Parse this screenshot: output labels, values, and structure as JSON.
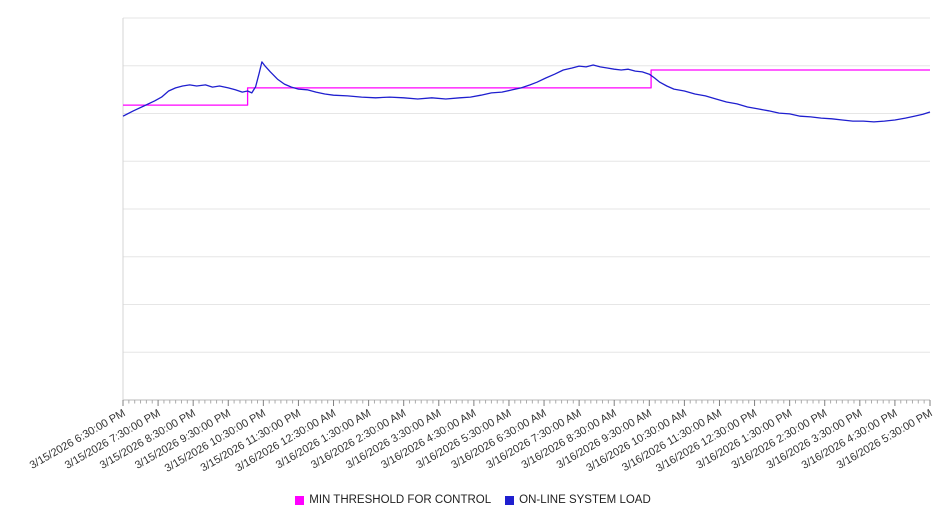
{
  "chart_data": {
    "type": "line",
    "title": "",
    "xlabel": "",
    "ylabel": "",
    "ylim": [
      0,
      100
    ],
    "y_tick_labels": [],
    "grid": "horizontal",
    "legend_position": "bottom-center",
    "x_label_rotation": -30,
    "x_tick_labels": [
      "3/15/2026 6:30:00 PM",
      "3/15/2026 7:30:00 PM",
      "3/15/2026 8:30:00 PM",
      "3/15/2026 9:30:00 PM",
      "3/15/2026 10:30:00 PM",
      "3/15/2026 11:30:00 PM",
      "3/16/2026 12:30:00 AM",
      "3/16/2026 1:30:00 AM",
      "3/16/2026 2:30:00 AM",
      "3/16/2026 3:30:00 AM",
      "3/16/2026 4:30:00 AM",
      "3/16/2026 5:30:00 AM",
      "3/16/2026 6:30:00 AM",
      "3/16/2026 7:30:00 AM",
      "3/16/2026 8:30:00 AM",
      "3/16/2026 9:30:00 AM",
      "3/16/2026 10:30:00 AM",
      "3/16/2026 11:30:00 AM",
      "3/16/2026 12:30:00 PM",
      "3/16/2026 1:30:00 PM",
      "3/16/2026 2:30:00 PM",
      "3/16/2026 3:30:00 PM",
      "3/16/2026 4:30:00 PM",
      "3/16/2026 5:30:00 PM"
    ],
    "series": [
      {
        "name": "MIN THRESHOLD FOR CONTROL",
        "color": "#ff00ff",
        "style": "step",
        "points": [
          [
            0,
            77.2
          ],
          [
            3.55,
            77.2
          ],
          [
            3.55,
            81.7
          ],
          [
            15.05,
            81.7
          ],
          [
            15.05,
            86.4
          ],
          [
            23,
            86.4
          ]
        ]
      },
      {
        "name": "ON-LINE SYSTEM LOAD",
        "color": "#1f1fcf",
        "style": "line",
        "points": [
          [
            0,
            74.3
          ],
          [
            0.3,
            75.7
          ],
          [
            0.6,
            77
          ],
          [
            0.9,
            78.3
          ],
          [
            1.1,
            79.3
          ],
          [
            1.3,
            80.9
          ],
          [
            1.5,
            81.7
          ],
          [
            1.7,
            82.2
          ],
          [
            1.9,
            82.5
          ],
          [
            2.1,
            82.2
          ],
          [
            2.35,
            82.5
          ],
          [
            2.55,
            81.9
          ],
          [
            2.75,
            82.2
          ],
          [
            3,
            81.7
          ],
          [
            3.2,
            81.2
          ],
          [
            3.4,
            80.6
          ],
          [
            3.55,
            80.9
          ],
          [
            3.67,
            80.4
          ],
          [
            3.78,
            82
          ],
          [
            3.88,
            85.5
          ],
          [
            3.96,
            88.5
          ],
          [
            4.05,
            87.4
          ],
          [
            4.2,
            85.9
          ],
          [
            4.4,
            84
          ],
          [
            4.6,
            82.7
          ],
          [
            4.8,
            81.9
          ],
          [
            5,
            81.4
          ],
          [
            5.25,
            81.2
          ],
          [
            5.5,
            80.6
          ],
          [
            5.75,
            80.1
          ],
          [
            6,
            79.8
          ],
          [
            6.4,
            79.6
          ],
          [
            6.8,
            79.3
          ],
          [
            7.2,
            79.1
          ],
          [
            7.6,
            79.3
          ],
          [
            8,
            79.1
          ],
          [
            8.4,
            78.8
          ],
          [
            8.8,
            79.1
          ],
          [
            9.2,
            78.8
          ],
          [
            9.6,
            79.1
          ],
          [
            9.9,
            79.3
          ],
          [
            10.2,
            79.8
          ],
          [
            10.5,
            80.4
          ],
          [
            10.8,
            80.6
          ],
          [
            11.1,
            81.2
          ],
          [
            11.35,
            81.7
          ],
          [
            11.6,
            82.5
          ],
          [
            11.8,
            83.2
          ],
          [
            12.05,
            84.3
          ],
          [
            12.3,
            85.3
          ],
          [
            12.55,
            86.4
          ],
          [
            12.8,
            86.9
          ],
          [
            13,
            87.4
          ],
          [
            13.2,
            87.2
          ],
          [
            13.4,
            87.7
          ],
          [
            13.6,
            87.2
          ],
          [
            13.8,
            86.9
          ],
          [
            14,
            86.6
          ],
          [
            14.2,
            86.4
          ],
          [
            14.4,
            86.6
          ],
          [
            14.6,
            86.1
          ],
          [
            14.8,
            85.9
          ],
          [
            15,
            85.3
          ],
          [
            15.15,
            84.3
          ],
          [
            15.3,
            83.2
          ],
          [
            15.5,
            82.2
          ],
          [
            15.7,
            81.4
          ],
          [
            16,
            80.9
          ],
          [
            16.3,
            80.1
          ],
          [
            16.6,
            79.6
          ],
          [
            16.9,
            78.8
          ],
          [
            17.2,
            78
          ],
          [
            17.5,
            77.5
          ],
          [
            17.8,
            76.7
          ],
          [
            18.1,
            76.2
          ],
          [
            18.4,
            75.7
          ],
          [
            18.7,
            75.1
          ],
          [
            19,
            74.9
          ],
          [
            19.3,
            74.3
          ],
          [
            19.6,
            74.1
          ],
          [
            19.9,
            73.8
          ],
          [
            20.2,
            73.6
          ],
          [
            20.5,
            73.3
          ],
          [
            20.8,
            73
          ],
          [
            21.1,
            73
          ],
          [
            21.4,
            72.8
          ],
          [
            21.7,
            73
          ],
          [
            22,
            73.3
          ],
          [
            22.3,
            73.8
          ],
          [
            22.55,
            74.3
          ],
          [
            22.8,
            74.8
          ],
          [
            23,
            75.4
          ]
        ]
      }
    ]
  },
  "legend": {
    "items": [
      {
        "label": "MIN THRESHOLD FOR CONTROL",
        "color": "#ff00ff"
      },
      {
        "label": "ON-LINE SYSTEM LOAD",
        "color": "#1f1fcf"
      }
    ]
  }
}
